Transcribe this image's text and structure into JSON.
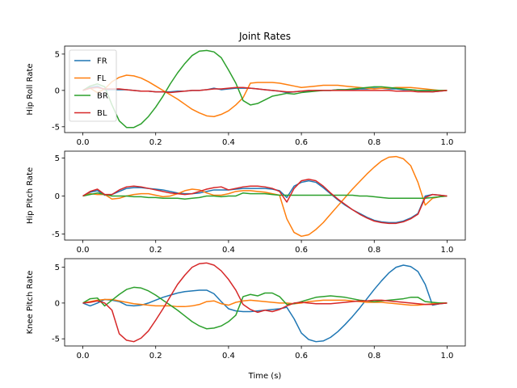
{
  "chart_data": {
    "type": "line",
    "title": "Joint Rates",
    "xlabel": "Time (s)",
    "xlim": [
      -0.05,
      1.05
    ],
    "xticks": [
      0.0,
      0.2,
      0.4,
      0.6,
      0.8,
      1.0
    ],
    "xtick_labels": [
      "0.0",
      "0.2",
      "0.4",
      "0.6",
      "0.8",
      "1.0"
    ],
    "legend": {
      "placement": "upper-left",
      "entries": [
        "FR",
        "FL",
        "BR",
        "BL"
      ]
    },
    "colors": {
      "FR": "#1f77b4",
      "FL": "#ff7f0e",
      "BR": "#2ca02c",
      "BL": "#d62728"
    },
    "x": [
      0.0,
      0.02,
      0.04,
      0.06,
      0.08,
      0.1,
      0.12,
      0.14,
      0.16,
      0.18,
      0.2,
      0.22,
      0.24,
      0.26,
      0.28,
      0.3,
      0.32,
      0.34,
      0.36,
      0.38,
      0.4,
      0.42,
      0.44,
      0.46,
      0.48,
      0.5,
      0.52,
      0.54,
      0.56,
      0.58,
      0.6,
      0.62,
      0.64,
      0.66,
      0.68,
      0.7,
      0.72,
      0.74,
      0.76,
      0.78,
      0.8,
      0.82,
      0.84,
      0.86,
      0.88,
      0.9,
      0.92,
      0.94,
      0.96,
      0.98,
      1.0
    ],
    "subplots": [
      {
        "ylabel": "Hip Roll Rate",
        "ylim": [
          -5.8,
          6.1
        ],
        "yticks": [
          -5,
          0,
          5
        ],
        "ytick_labels": [
          "-5",
          "0",
          "5"
        ],
        "series": [
          {
            "name": "FR",
            "values": [
              0.0,
              0.4,
              0.6,
              0.1,
              0.1,
              0.1,
              0.1,
              0.0,
              -0.1,
              -0.1,
              -0.2,
              -0.2,
              -0.2,
              -0.1,
              -0.1,
              0.0,
              0.0,
              0.1,
              0.3,
              0.1,
              0.2,
              0.3,
              0.3,
              0.3,
              0.2,
              0.1,
              0.0,
              -0.1,
              -0.3,
              -0.2,
              -0.1,
              -0.1,
              0.0,
              0.0,
              0.0,
              0.1,
              0.1,
              0.1,
              0.2,
              0.2,
              0.3,
              0.3,
              0.2,
              0.2,
              0.1,
              0.1,
              0.0,
              -0.1,
              -0.2,
              -0.1,
              0.0
            ]
          },
          {
            "name": "FL",
            "values": [
              0.0,
              0.3,
              -0.3,
              0.2,
              1.2,
              1.8,
              2.1,
              2.0,
              1.7,
              1.2,
              0.6,
              0.0,
              -0.6,
              -1.2,
              -1.9,
              -2.6,
              -3.1,
              -3.5,
              -3.6,
              -3.3,
              -2.8,
              -2.0,
              -1.0,
              1.0,
              1.1,
              1.1,
              1.1,
              1.0,
              0.8,
              0.6,
              0.4,
              0.5,
              0.6,
              0.7,
              0.7,
              0.7,
              0.6,
              0.5,
              0.4,
              0.3,
              0.2,
              0.3,
              0.3,
              0.4,
              0.4,
              0.4,
              0.3,
              0.2,
              0.1,
              0.0,
              0.0
            ]
          },
          {
            "name": "BR",
            "values": [
              0.0,
              0.6,
              0.9,
              0.5,
              -2.0,
              -4.2,
              -5.1,
              -5.1,
              -4.6,
              -3.6,
              -2.3,
              -0.8,
              0.9,
              2.4,
              3.7,
              4.8,
              5.4,
              5.5,
              5.3,
              4.5,
              2.8,
              1.0,
              -1.4,
              -2.0,
              -1.8,
              -1.3,
              -0.8,
              -0.6,
              -0.4,
              -0.5,
              -0.3,
              -0.2,
              -0.1,
              0.0,
              0.0,
              0.1,
              0.1,
              0.2,
              0.3,
              0.4,
              0.5,
              0.5,
              0.4,
              0.3,
              0.2,
              0.1,
              0.0,
              0.0,
              0.0,
              0.0,
              0.0
            ]
          },
          {
            "name": "BL",
            "values": [
              0.0,
              0.3,
              0.4,
              0.2,
              0.2,
              0.2,
              0.1,
              0.0,
              -0.1,
              -0.1,
              -0.2,
              -0.2,
              -0.3,
              -0.2,
              -0.1,
              0.0,
              0.0,
              0.1,
              0.2,
              0.2,
              0.3,
              0.4,
              0.4,
              0.3,
              0.2,
              0.1,
              0.0,
              -0.1,
              -0.2,
              -0.2,
              -0.1,
              0.0,
              0.0,
              0.0,
              0.0,
              0.0,
              0.0,
              0.0,
              0.0,
              0.0,
              0.0,
              0.0,
              0.0,
              -0.1,
              -0.1,
              -0.1,
              -0.2,
              -0.2,
              -0.2,
              -0.1,
              0.0
            ]
          }
        ]
      },
      {
        "ylabel": "Hip Pitch Rate",
        "ylim": [
          -5.8,
          5.9
        ],
        "yticks": [
          -5,
          0,
          5
        ],
        "ytick_labels": [
          "-5",
          "0",
          "5"
        ],
        "series": [
          {
            "name": "FR",
            "values": [
              0.0,
              0.5,
              0.7,
              0.1,
              0.2,
              0.6,
              1.0,
              1.1,
              1.1,
              1.0,
              0.9,
              0.8,
              0.6,
              0.4,
              0.3,
              0.3,
              0.4,
              0.6,
              0.8,
              0.8,
              0.8,
              0.9,
              1.0,
              1.0,
              1.0,
              1.0,
              0.9,
              0.7,
              -0.2,
              1.3,
              1.8,
              2.0,
              1.8,
              1.1,
              0.3,
              -0.5,
              -1.2,
              -1.8,
              -2.3,
              -2.8,
              -3.2,
              -3.4,
              -3.5,
              -3.5,
              -3.3,
              -2.9,
              -2.3,
              0.0,
              0.2,
              0.1,
              0.0
            ]
          },
          {
            "name": "FL",
            "values": [
              0.0,
              0.3,
              0.2,
              0.2,
              -0.4,
              -0.3,
              0.0,
              0.2,
              0.3,
              0.3,
              0.1,
              -0.1,
              0.0,
              0.3,
              0.7,
              0.9,
              0.8,
              0.4,
              0.1,
              0.1,
              0.3,
              0.6,
              0.7,
              0.7,
              0.6,
              0.5,
              0.3,
              0.1,
              -3.0,
              -4.8,
              -5.3,
              -5.1,
              -4.4,
              -3.5,
              -2.4,
              -1.3,
              -0.2,
              0.9,
              1.9,
              2.9,
              3.8,
              4.6,
              5.1,
              5.2,
              4.9,
              4.0,
              1.8,
              -1.2,
              -0.3,
              -0.1,
              0.0
            ]
          },
          {
            "name": "BR",
            "values": [
              0.0,
              0.2,
              0.4,
              0.2,
              0.0,
              0.0,
              0.0,
              -0.1,
              -0.1,
              -0.2,
              -0.2,
              -0.3,
              -0.3,
              -0.3,
              -0.4,
              -0.3,
              -0.2,
              0.0,
              0.0,
              -0.1,
              0.0,
              0.0,
              0.4,
              0.3,
              0.3,
              0.3,
              0.2,
              0.1,
              0.1,
              0.1,
              0.1,
              0.1,
              0.1,
              0.1,
              0.1,
              0.1,
              0.1,
              0.1,
              0.0,
              0.0,
              -0.1,
              -0.2,
              -0.3,
              -0.3,
              -0.3,
              -0.3,
              -0.3,
              -0.3,
              -0.2,
              -0.1,
              0.0
            ]
          },
          {
            "name": "BL",
            "values": [
              0.0,
              0.6,
              0.9,
              0.2,
              0.2,
              0.8,
              1.2,
              1.3,
              1.2,
              1.0,
              0.8,
              0.6,
              0.4,
              0.3,
              0.2,
              0.3,
              0.6,
              0.9,
              1.1,
              1.2,
              0.8,
              1.0,
              1.2,
              1.3,
              1.3,
              1.2,
              1.0,
              0.6,
              -0.8,
              1.0,
              2.0,
              2.2,
              2.0,
              1.3,
              0.4,
              -0.4,
              -1.1,
              -1.8,
              -2.4,
              -2.9,
              -3.3,
              -3.5,
              -3.6,
              -3.6,
              -3.4,
              -3.0,
              -2.4,
              -0.2,
              0.2,
              0.1,
              0.0
            ]
          }
        ]
      },
      {
        "ylabel": "Knee Pitch Rate",
        "ylim": [
          -6.0,
          6.2
        ],
        "yticks": [
          -5,
          0,
          5
        ],
        "ytick_labels": [
          "-5",
          "0",
          "5"
        ],
        "series": [
          {
            "name": "FR",
            "values": [
              0.0,
              -0.4,
              0.0,
              0.5,
              0.4,
              0.2,
              -0.3,
              -0.4,
              -0.3,
              0.0,
              0.4,
              0.8,
              1.1,
              1.4,
              1.6,
              1.7,
              1.8,
              1.8,
              1.3,
              0.2,
              -0.8,
              -1.1,
              -1.2,
              -1.2,
              -1.1,
              -1.0,
              -0.9,
              -0.8,
              -0.6,
              -2.2,
              -4.2,
              -5.1,
              -5.4,
              -5.3,
              -4.8,
              -4.0,
              -3.0,
              -1.9,
              -0.7,
              0.6,
              1.9,
              3.1,
              4.2,
              5.0,
              5.3,
              5.1,
              4.4,
              2.6,
              -0.3,
              -0.1,
              0.0
            ]
          },
          {
            "name": "FL",
            "values": [
              0.0,
              0.2,
              0.4,
              0.5,
              0.5,
              0.3,
              0.1,
              -0.1,
              -0.2,
              -0.3,
              -0.4,
              -0.4,
              -0.4,
              -0.5,
              -0.5,
              -0.4,
              -0.2,
              0.2,
              0.3,
              -0.1,
              -0.3,
              0.1,
              0.3,
              0.4,
              0.3,
              0.2,
              0.1,
              0.0,
              0.0,
              -0.1,
              0.0,
              0.2,
              0.3,
              0.4,
              0.4,
              0.4,
              0.4,
              0.3,
              0.2,
              0.1,
              0.1,
              0.1,
              0.0,
              -0.1,
              -0.2,
              -0.3,
              -0.3,
              -0.2,
              -0.1,
              0.0,
              0.0
            ]
          },
          {
            "name": "BR",
            "values": [
              0.0,
              0.6,
              0.7,
              -0.4,
              0.4,
              1.2,
              1.9,
              2.2,
              2.1,
              1.7,
              1.1,
              0.4,
              -0.3,
              -1.0,
              -1.8,
              -2.6,
              -3.2,
              -3.6,
              -3.5,
              -3.2,
              -2.6,
              -1.7,
              0.9,
              1.2,
              1.0,
              1.4,
              1.4,
              0.9,
              -0.2,
              -0.1,
              0.2,
              0.5,
              0.8,
              0.9,
              1.0,
              0.9,
              0.8,
              0.6,
              0.4,
              0.3,
              0.2,
              0.3,
              0.4,
              0.5,
              0.6,
              0.8,
              0.8,
              0.2,
              0.1,
              0.0,
              0.0
            ]
          },
          {
            "name": "BL",
            "values": [
              0.0,
              0.1,
              0.3,
              0.0,
              -1.0,
              -4.3,
              -5.2,
              -5.4,
              -4.9,
              -3.9,
              -2.4,
              -0.8,
              0.9,
              2.6,
              3.9,
              5.0,
              5.5,
              5.6,
              5.3,
              4.5,
              3.3,
              1.8,
              -0.2,
              -0.9,
              -1.3,
              -1.0,
              -1.2,
              -0.9,
              -0.4,
              0.0,
              0.1,
              0.0,
              -0.1,
              -0.1,
              -0.1,
              0.0,
              0.1,
              0.2,
              0.3,
              0.3,
              0.4,
              0.4,
              0.3,
              0.2,
              0.1,
              0.0,
              -0.1,
              -0.2,
              -0.2,
              -0.1,
              0.0
            ]
          }
        ]
      }
    ]
  }
}
